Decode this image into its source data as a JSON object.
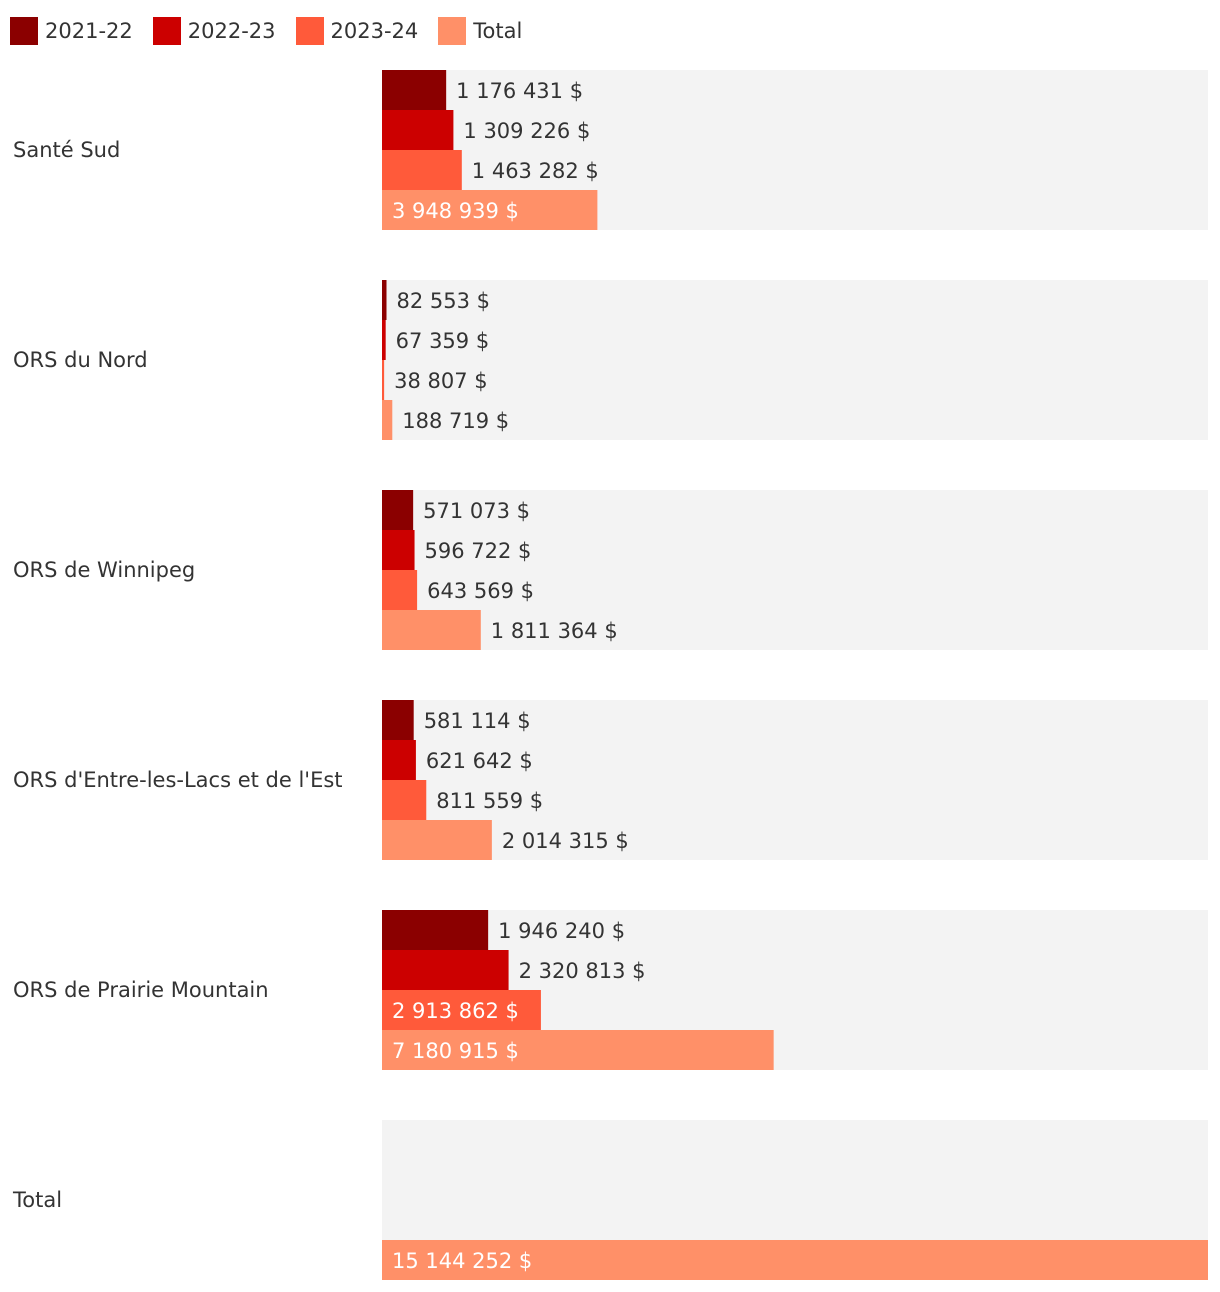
{
  "chart_data": {
    "type": "bar",
    "orientation": "horizontal",
    "series": [
      {
        "name": "2021-22",
        "color": "#8B0000"
      },
      {
        "name": "2022-23",
        "color": "#CC0000"
      },
      {
        "name": "2023-24",
        "color": "#FF5A3A"
      },
      {
        "name": "Total",
        "color": "#FF9068"
      }
    ],
    "categories": [
      {
        "name": "Santé Sud",
        "values": [
          1176431,
          1309226,
          1463282,
          3948939
        ],
        "labels": [
          "1 176 431 $",
          "1 309 226 $",
          "1 463 282 $",
          "3 948 939 $"
        ]
      },
      {
        "name": "ORS du Nord",
        "values": [
          82553,
          67359,
          38807,
          188719
        ],
        "labels": [
          "82 553 $",
          "67 359 $",
          "38 807 $",
          "188 719 $"
        ]
      },
      {
        "name": "ORS de Winnipeg",
        "values": [
          571073,
          596722,
          643569,
          1811364
        ],
        "labels": [
          "571 073 $",
          "596 722 $",
          "643 569 $",
          "1 811 364 $"
        ]
      },
      {
        "name": "ORS d'Entre-les-Lacs et de l'Est",
        "values": [
          581114,
          621642,
          811559,
          2014315
        ],
        "labels": [
          "581 114 $",
          "621 642 $",
          "811 559 $",
          "2 014 315 $"
        ]
      },
      {
        "name": "ORS de Prairie Mountain",
        "values": [
          1946240,
          2320813,
          2913862,
          7180915
        ],
        "labels": [
          "1 946 240 $",
          "2 320 813 $",
          "2 913 862 $",
          "7 180 915 $"
        ]
      },
      {
        "name": "Total",
        "values": [
          null,
          null,
          null,
          15144252
        ],
        "labels": [
          "",
          "",
          "",
          "15 144 252 $"
        ]
      }
    ],
    "xlim": [
      0,
      15144252
    ],
    "legend": "top-left",
    "grid": false,
    "background_color": "#F3F3F3",
    "text_color": "#333333"
  }
}
